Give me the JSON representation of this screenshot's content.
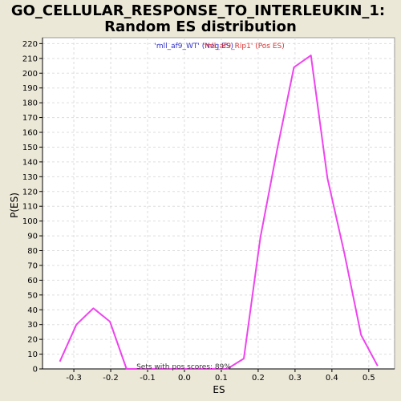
{
  "chart_data": {
    "type": "line",
    "title_line1": "GO_CELLULAR_RESPONSE_TO_INTERLEUKIN_1:",
    "title_line2": "Random ES distribution",
    "xlabel": "ES",
    "ylabel": "P(ES)",
    "xlim": [
      -0.385,
      0.57
    ],
    "ylim": [
      0,
      224
    ],
    "x_ticks": [
      -0.3,
      -0.2,
      -0.1,
      0.0,
      0.1,
      0.2,
      0.3,
      0.4,
      0.5
    ],
    "x_tick_labels": [
      "-0.3",
      "-0.2",
      "-0.1",
      "0.0",
      "0.1",
      "0.2",
      "0.3",
      "0.4",
      "0.5"
    ],
    "y_ticks": [
      0,
      10,
      20,
      30,
      40,
      50,
      60,
      70,
      80,
      90,
      100,
      110,
      120,
      130,
      140,
      150,
      160,
      170,
      180,
      190,
      200,
      210,
      220
    ],
    "y_tick_labels": [
      "0",
      "10",
      "20",
      "30",
      "40",
      "50",
      "60",
      "70",
      "80",
      "90",
      "100",
      "110",
      "120",
      "130",
      "140",
      "150",
      "160",
      "170",
      "180",
      "190",
      "200",
      "210",
      "220"
    ],
    "grid": true,
    "legend": [
      {
        "label": "'mll_af9_WT' (Neg ES)",
        "color": "#3333CC"
      },
      {
        "label": "'mll_af9_Rip1' (Pos ES)",
        "color": "#DD3333"
      }
    ],
    "series": [
      {
        "color": "#EE44EE",
        "x": [
          -0.338,
          -0.293,
          -0.247,
          -0.202,
          -0.157,
          -0.111,
          -0.066,
          -0.021,
          0.025,
          0.07,
          0.116,
          0.161,
          0.206,
          0.252,
          0.297,
          0.343,
          0.388,
          0.434,
          0.479,
          0.524
        ],
        "y": [
          5,
          30,
          41,
          32,
          0,
          0,
          0,
          0,
          0,
          0,
          0,
          7,
          89,
          149,
          204,
          212,
          129,
          78,
          23,
          2
        ]
      }
    ],
    "annotation": "Sets with pos scores: 89%"
  },
  "colors": {
    "background": "#ECE8D8",
    "plot_background": "#FFFFFF",
    "line": "#EE44EE",
    "grid": "#DDDDDD"
  }
}
